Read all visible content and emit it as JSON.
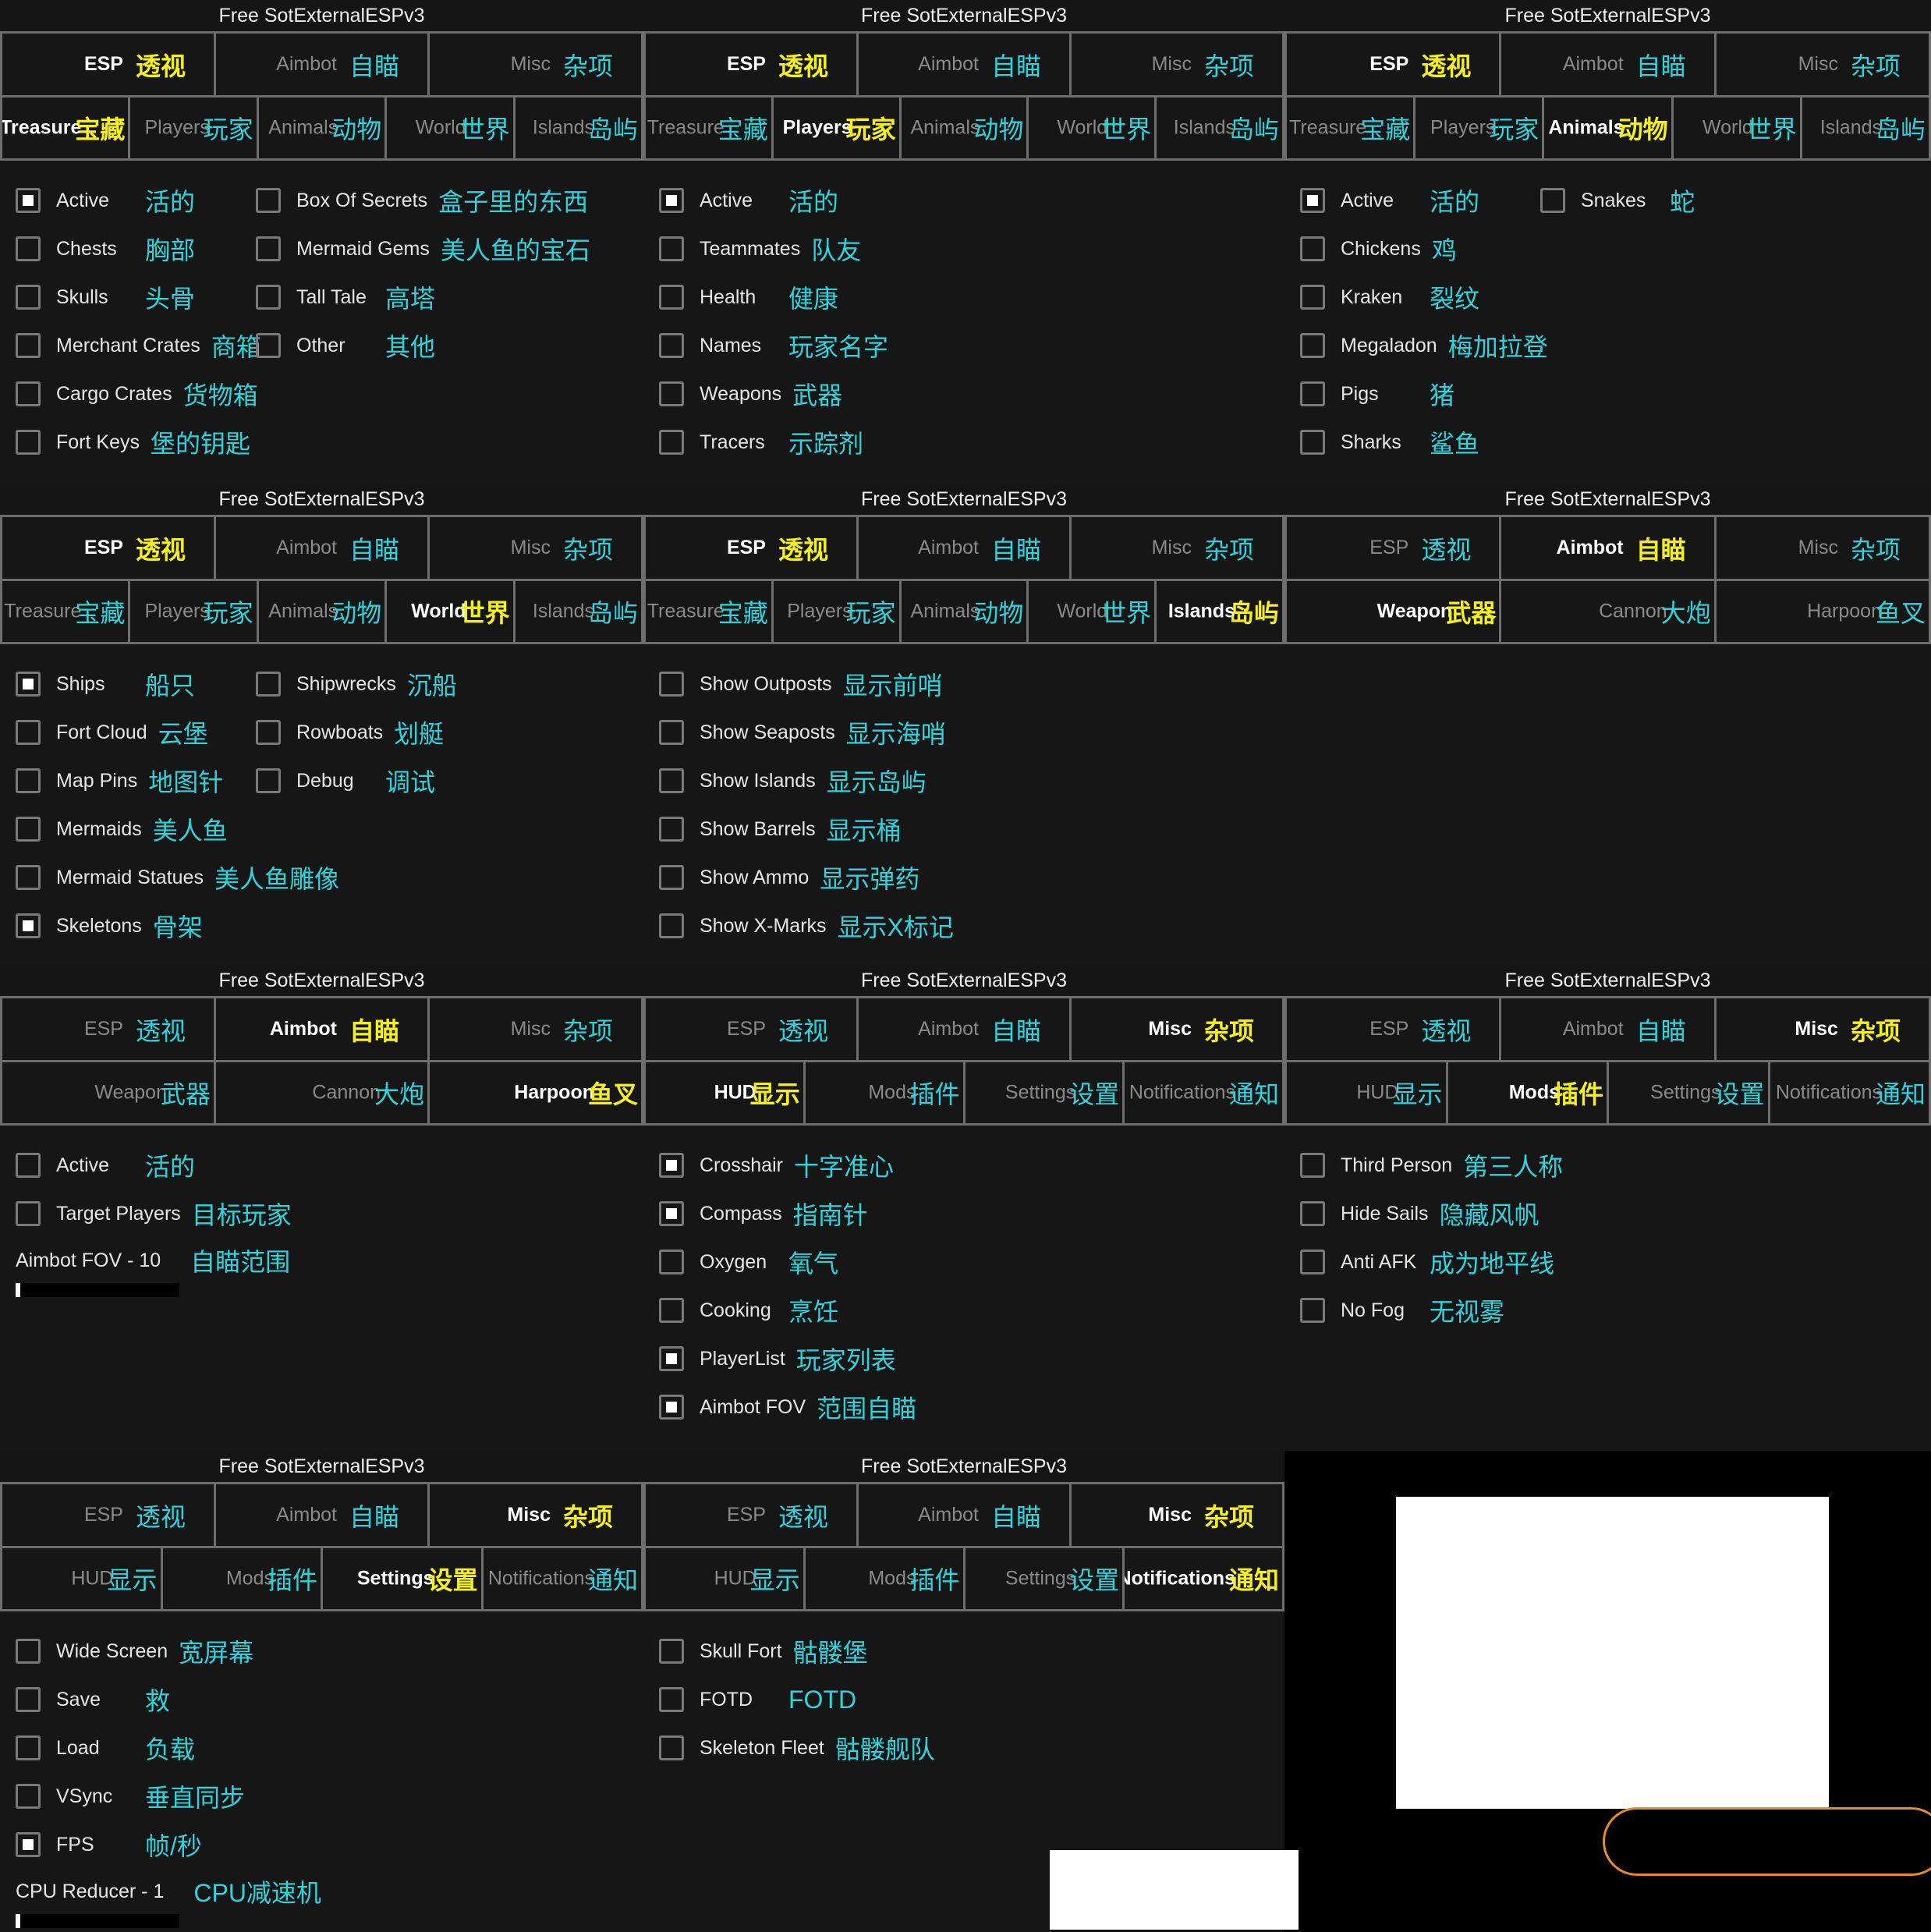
{
  "window_title": "Free SotExternalESPv3",
  "colors": {
    "background": "#161616",
    "border": "#6e6e6e",
    "active_en": "#ffffff",
    "active_zh": "#f5ef1f",
    "inactive_en": "#8a8a8a",
    "inactive_zh": "#2fd3dc",
    "overlay_pill": "#e8892a"
  },
  "main_tabs": [
    {
      "en": "ESP",
      "zh": "透视"
    },
    {
      "en": "Aimbot",
      "zh": "自瞄"
    },
    {
      "en": "Misc",
      "zh": "杂项"
    }
  ],
  "panels": [
    {
      "main_active": 0,
      "subtabs": [
        {
          "en": "Treasure",
          "zh": "宝藏"
        },
        {
          "en": "Players",
          "zh": "玩家"
        },
        {
          "en": "Animals",
          "zh": "动物"
        },
        {
          "en": "World",
          "zh": "世界"
        },
        {
          "en": "Islands",
          "zh": "岛屿"
        }
      ],
      "sub_active": 0,
      "columns": [
        [
          {
            "en": "Active",
            "zh": "活的",
            "checked": true
          },
          {
            "en": "Chests",
            "zh": "胸部",
            "checked": false
          },
          {
            "en": "Skulls",
            "zh": "头骨",
            "checked": false
          },
          {
            "en": "Merchant Crates",
            "zh": "商箱",
            "checked": false
          },
          {
            "en": "Cargo Crates",
            "zh": "货物箱",
            "checked": false
          },
          {
            "en": "Fort Keys",
            "zh": "堡的钥匙",
            "checked": false
          }
        ],
        [
          {
            "en": "Box Of Secrets",
            "zh": "盒子里的东西",
            "checked": false
          },
          {
            "en": "Mermaid Gems",
            "zh": "美人鱼的宝石",
            "checked": false
          },
          {
            "en": "Tall Tale",
            "zh": "高塔",
            "checked": false
          },
          {
            "en": "Other",
            "zh": "其他",
            "checked": false
          }
        ]
      ]
    },
    {
      "main_active": 0,
      "subtabs": [
        {
          "en": "Treasure",
          "zh": "宝藏"
        },
        {
          "en": "Players",
          "zh": "玩家"
        },
        {
          "en": "Animals",
          "zh": "动物"
        },
        {
          "en": "World",
          "zh": "世界"
        },
        {
          "en": "Islands",
          "zh": "岛屿"
        }
      ],
      "sub_active": 1,
      "columns": [
        [
          {
            "en": "Active",
            "zh": "活的",
            "checked": true
          },
          {
            "en": "Teammates",
            "zh": "队友",
            "checked": false
          },
          {
            "en": "Health",
            "zh": "健康",
            "checked": false
          },
          {
            "en": "Names",
            "zh": "玩家名字",
            "checked": false
          },
          {
            "en": "Weapons",
            "zh": "武器",
            "checked": false
          },
          {
            "en": "Tracers",
            "zh": "示踪剂",
            "checked": false
          }
        ]
      ]
    },
    {
      "main_active": 0,
      "subtabs": [
        {
          "en": "Treasure",
          "zh": "宝藏"
        },
        {
          "en": "Players",
          "zh": "玩家"
        },
        {
          "en": "Animals",
          "zh": "动物"
        },
        {
          "en": "World",
          "zh": "世界"
        },
        {
          "en": "Islands",
          "zh": "岛屿"
        }
      ],
      "sub_active": 2,
      "columns": [
        [
          {
            "en": "Active",
            "zh": "活的",
            "checked": true
          },
          {
            "en": "Chickens",
            "zh": "鸡",
            "checked": false
          },
          {
            "en": "Kraken",
            "zh": "裂纹",
            "checked": false
          },
          {
            "en": "Megaladon",
            "zh": "梅加拉登",
            "checked": false
          },
          {
            "en": "Pigs",
            "zh": "猪",
            "checked": false
          },
          {
            "en": "Sharks",
            "zh": "鲨鱼",
            "checked": false
          }
        ],
        [
          {
            "en": "Snakes",
            "zh": "蛇",
            "checked": false
          }
        ]
      ]
    },
    {
      "main_active": 0,
      "subtabs": [
        {
          "en": "Treasure",
          "zh": "宝藏"
        },
        {
          "en": "Players",
          "zh": "玩家"
        },
        {
          "en": "Animals",
          "zh": "动物"
        },
        {
          "en": "World",
          "zh": "世界"
        },
        {
          "en": "Islands",
          "zh": "岛屿"
        }
      ],
      "sub_active": 3,
      "columns": [
        [
          {
            "en": "Ships",
            "zh": "船只",
            "checked": true
          },
          {
            "en": "Fort Cloud",
            "zh": "云堡",
            "checked": false
          },
          {
            "en": "Map Pins",
            "zh": "地图针",
            "checked": false
          },
          {
            "en": "Mermaids",
            "zh": "美人鱼",
            "checked": false
          },
          {
            "en": "Mermaid Statues",
            "zh": "美人鱼雕像",
            "checked": false
          },
          {
            "en": "Skeletons",
            "zh": "骨架",
            "checked": true
          }
        ],
        [
          {
            "en": "Shipwrecks",
            "zh": "沉船",
            "checked": false
          },
          {
            "en": "Rowboats",
            "zh": "划艇",
            "checked": false
          },
          {
            "en": "Debug",
            "zh": "调试",
            "checked": false
          }
        ]
      ]
    },
    {
      "main_active": 0,
      "subtabs": [
        {
          "en": "Treasure",
          "zh": "宝藏"
        },
        {
          "en": "Players",
          "zh": "玩家"
        },
        {
          "en": "Animals",
          "zh": "动物"
        },
        {
          "en": "World",
          "zh": "世界"
        },
        {
          "en": "Islands",
          "zh": "岛屿"
        }
      ],
      "sub_active": 4,
      "columns": [
        [
          {
            "en": "Show Outposts",
            "zh": "显示前哨",
            "checked": false
          },
          {
            "en": "Show Seaposts",
            "zh": "显示海哨",
            "checked": false
          },
          {
            "en": "Show Islands",
            "zh": "显示岛屿",
            "checked": false
          },
          {
            "en": "Show Barrels",
            "zh": "显示桶",
            "checked": false
          },
          {
            "en": "Show Ammo",
            "zh": "显示弹药",
            "checked": false
          },
          {
            "en": "Show X-Marks",
            "zh": "显示X标记",
            "checked": false
          }
        ]
      ]
    },
    {
      "main_active": 1,
      "subtabs": [
        {
          "en": "Weapon",
          "zh": "武器"
        },
        {
          "en": "Cannon",
          "zh": "大炮"
        },
        {
          "en": "Harpoon",
          "zh": "鱼叉"
        }
      ],
      "sub_active": 0,
      "columns": []
    },
    {
      "main_active": 1,
      "subtabs": [
        {
          "en": "Weapon",
          "zh": "武器"
        },
        {
          "en": "Cannon",
          "zh": "大炮"
        },
        {
          "en": "Harpoon",
          "zh": "鱼叉"
        }
      ],
      "sub_active": 2,
      "columns": [
        [
          {
            "en": "Active",
            "zh": "活的",
            "checked": false
          },
          {
            "en": "Target Players",
            "zh": "目标玩家",
            "checked": false
          }
        ]
      ],
      "slider": {
        "en": "Aimbot FOV - 10",
        "zh": "自瞄范围",
        "value_fraction": 0.03
      }
    },
    {
      "main_active": 2,
      "subtabs": [
        {
          "en": "HUD",
          "zh": "显示"
        },
        {
          "en": "Mods",
          "zh": "插件"
        },
        {
          "en": "Settings",
          "zh": "设置"
        },
        {
          "en": "Notifications",
          "zh": "通知"
        }
      ],
      "sub_active": 0,
      "columns": [
        [
          {
            "en": "Crosshair",
            "zh": "十字准心",
            "checked": true
          },
          {
            "en": "Compass",
            "zh": "指南针",
            "checked": true
          },
          {
            "en": "Oxygen",
            "zh": "氧气",
            "checked": false
          },
          {
            "en": "Cooking",
            "zh": "烹饪",
            "checked": false
          },
          {
            "en": "PlayerList",
            "zh": "玩家列表",
            "checked": true
          },
          {
            "en": "Aimbot FOV",
            "zh": "范围自瞄",
            "checked": true
          }
        ]
      ]
    },
    {
      "main_active": 2,
      "subtabs": [
        {
          "en": "HUD",
          "zh": "显示"
        },
        {
          "en": "Mods",
          "zh": "插件"
        },
        {
          "en": "Settings",
          "zh": "设置"
        },
        {
          "en": "Notifications",
          "zh": "通知"
        }
      ],
      "sub_active": 1,
      "columns": [
        [
          {
            "en": "Third Person",
            "zh": "第三人称",
            "checked": false
          },
          {
            "en": "Hide Sails",
            "zh": "隐藏风帆",
            "checked": false
          },
          {
            "en": "Anti AFK",
            "zh": "成为地平线",
            "checked": false
          },
          {
            "en": "No Fog",
            "zh": "无视雾",
            "checked": false
          }
        ]
      ]
    },
    {
      "main_active": 2,
      "subtabs": [
        {
          "en": "HUD",
          "zh": "显示"
        },
        {
          "en": "Mods",
          "zh": "插件"
        },
        {
          "en": "Settings",
          "zh": "设置"
        },
        {
          "en": "Notifications",
          "zh": "通知"
        }
      ],
      "sub_active": 2,
      "columns": [
        [
          {
            "en": "Wide Screen",
            "zh": "宽屏幕",
            "checked": false
          },
          {
            "en": "Save",
            "zh": "救",
            "checked": false
          },
          {
            "en": "Load",
            "zh": "负载",
            "checked": false
          },
          {
            "en": "VSync",
            "zh": "垂直同步",
            "checked": false
          },
          {
            "en": "FPS",
            "zh": "帧/秒",
            "checked": true
          }
        ]
      ],
      "slider": {
        "en": "CPU Reducer - 1",
        "zh": "CPU减速机",
        "value_fraction": 0.01
      }
    },
    {
      "main_active": 2,
      "subtabs": [
        {
          "en": "HUD",
          "zh": "显示"
        },
        {
          "en": "Mods",
          "zh": "插件"
        },
        {
          "en": "Settings",
          "zh": "设置"
        },
        {
          "en": "Notifications",
          "zh": "通知"
        }
      ],
      "sub_active": 3,
      "columns": [
        [
          {
            "en": "Skull Fort",
            "zh": "骷髅堡",
            "checked": false
          },
          {
            "en": "FOTD",
            "zh": "FOTD",
            "checked": false
          },
          {
            "en": "Skeleton Fleet",
            "zh": "骷髅舰队",
            "checked": false
          }
        ]
      ]
    }
  ]
}
